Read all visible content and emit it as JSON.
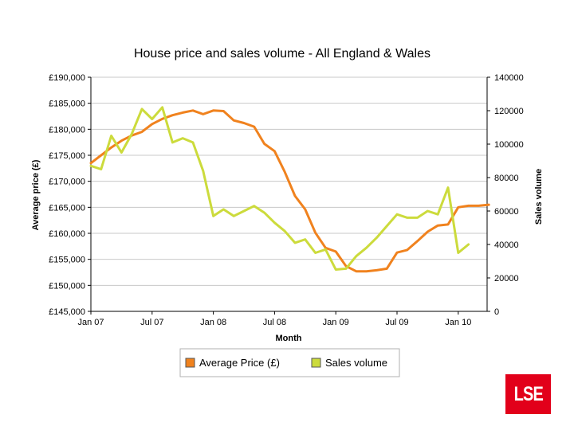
{
  "chart_data": {
    "type": "line",
    "title": "House price and sales volume - All England & Wales",
    "xlabel": "Month",
    "ylabel": "Average price (£)",
    "y2label": "Sales volume",
    "x_ticks": [
      "Jan 07",
      "Jul 07",
      "Jan 08",
      "Jul 08",
      "Jan 09",
      "Jul 09",
      "Jan 10"
    ],
    "y_ticks": [
      "£145,000",
      "£150,000",
      "£155,000",
      "£160,000",
      "£165,000",
      "£170,000",
      "£175,000",
      "£180,000",
      "£185,000",
      "£190,000"
    ],
    "y2_ticks": [
      "0",
      "20000",
      "40000",
      "60000",
      "80000",
      "100000",
      "120000",
      "140000"
    ],
    "ylim": [
      145000,
      190000
    ],
    "y2lim": [
      0,
      140000
    ],
    "x": [
      "Jan 07",
      "Feb 07",
      "Mar 07",
      "Apr 07",
      "May 07",
      "Jun 07",
      "Jul 07",
      "Aug 07",
      "Sep 07",
      "Oct 07",
      "Nov 07",
      "Dec 07",
      "Jan 08",
      "Feb 08",
      "Mar 08",
      "Apr 08",
      "May 08",
      "Jun 08",
      "Jul 08",
      "Aug 08",
      "Sep 08",
      "Oct 08",
      "Nov 08",
      "Dec 08",
      "Jan 09",
      "Feb 09",
      "Mar 09",
      "Apr 09",
      "May 09",
      "Jun 09",
      "Jul 09",
      "Aug 09",
      "Sep 09",
      "Oct 09",
      "Nov 09",
      "Dec 09",
      "Jan 10",
      "Feb 10",
      "Mar 10",
      "Apr 10"
    ],
    "series": [
      {
        "name": "Average Price (£)",
        "axis": "left",
        "color": "#f0821e",
        "values": [
          173500,
          175000,
          176500,
          177800,
          178800,
          179500,
          181000,
          182000,
          182700,
          183200,
          183600,
          182900,
          183600,
          183500,
          181700,
          181200,
          180500,
          177200,
          175800,
          171800,
          167200,
          164600,
          160100,
          157200,
          156500,
          153700,
          152700,
          152700,
          152900,
          153200,
          156300,
          156800,
          158500,
          160300,
          161500,
          161700,
          165000,
          165300,
          165300,
          165500
        ]
      },
      {
        "name": "Sales volume",
        "axis": "right",
        "color": "#ccdb3c",
        "values": [
          87000,
          85000,
          105000,
          95000,
          106000,
          121000,
          115000,
          122000,
          101000,
          103500,
          101000,
          84000,
          57000,
          61000,
          57000,
          60000,
          63000,
          59000,
          53000,
          48000,
          41000,
          43000,
          35000,
          37000,
          25000,
          25500,
          33000,
          38000,
          44000,
          51000,
          58000,
          56000,
          56000,
          60000,
          58000,
          74000,
          35000,
          40000,
          null,
          null
        ]
      }
    ],
    "legend": {
      "position": "bottom",
      "items": [
        "Average Price (£)",
        "Sales volume"
      ]
    }
  },
  "logo": {
    "text": "LSE",
    "color": "#e2001a"
  }
}
